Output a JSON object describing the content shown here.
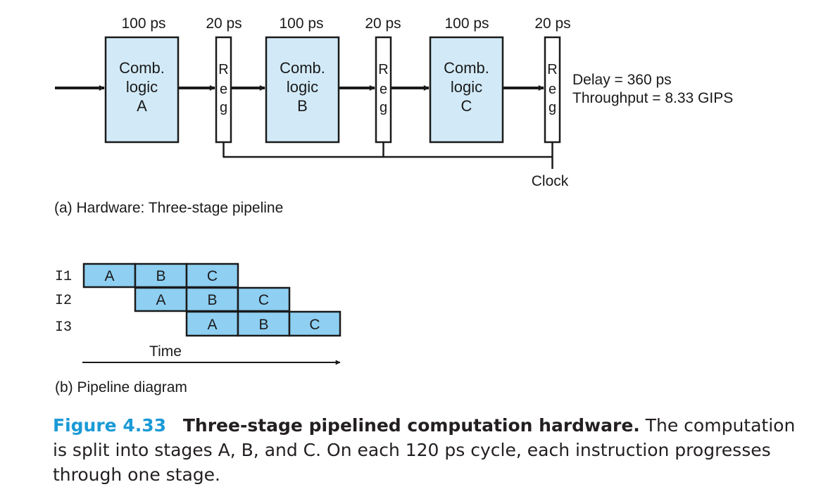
{
  "hardware": {
    "timings": [
      "100 ps",
      "20 ps",
      "100 ps",
      "20 ps",
      "100 ps",
      "20 ps"
    ],
    "logic_blocks": [
      {
        "line1": "Comb.",
        "line2": "logic",
        "line3": "A"
      },
      {
        "line1": "Comb.",
        "line2": "logic",
        "line3": "B"
      },
      {
        "line1": "Comb.",
        "line2": "logic",
        "line3": "C"
      }
    ],
    "register_letters": [
      "R",
      "e",
      "g"
    ],
    "delay_text": "Delay = 360 ps",
    "throughput_text": "Throughput = 8.33 GIPS",
    "clock_label": "Clock",
    "caption": "(a) Hardware: Three-stage pipeline"
  },
  "pipeline": {
    "rows": [
      {
        "label": "I1",
        "stages": [
          "A",
          "B",
          "C"
        ]
      },
      {
        "label": "I2",
        "stages": [
          "A",
          "B",
          "C"
        ]
      },
      {
        "label": "I3",
        "stages": [
          "A",
          "B",
          "C"
        ]
      }
    ],
    "time_label": "Time",
    "caption": "(b) Pipeline diagram"
  },
  "figure": {
    "number": "Figure 4.33",
    "title": "Three-stage pipelined computation hardware.",
    "text": " The computation is split into stages A, B, and C. On each 120 ps cycle, each instruction progresses through one stage."
  },
  "colors": {
    "fill": "#d2eaf8",
    "cell_fill": "#8ecff2",
    "stroke": "#1a1a1a",
    "accent": "#1a9ad6"
  }
}
